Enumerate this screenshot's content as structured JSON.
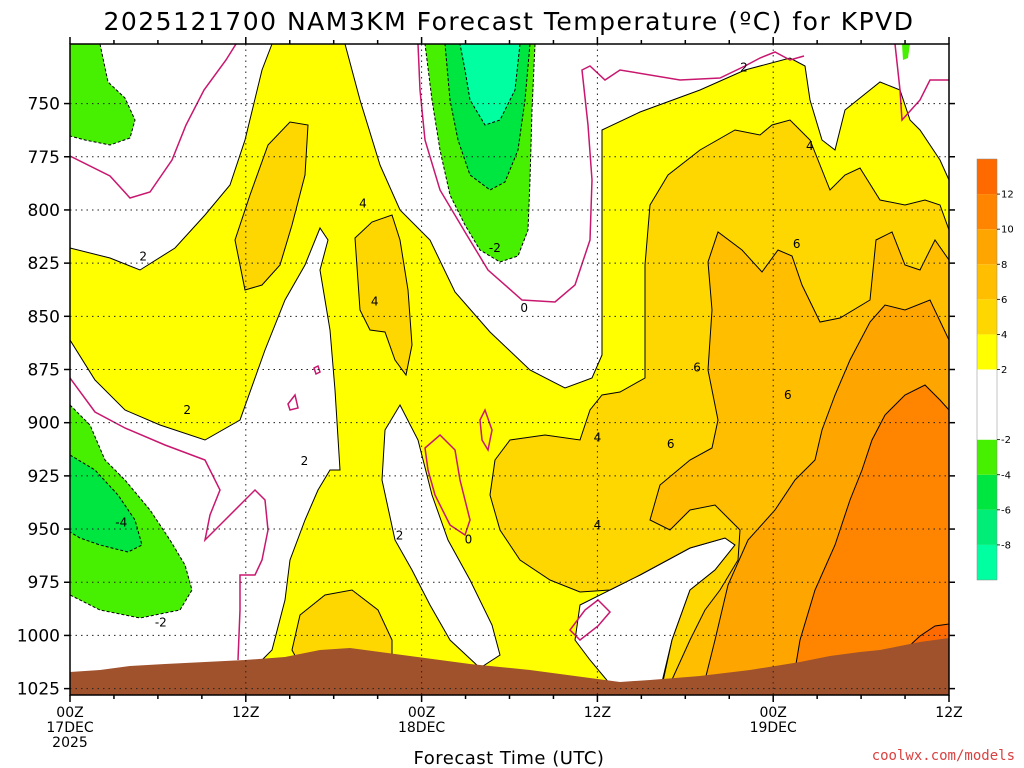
{
  "chart_data": {
    "type": "contour",
    "title": "2025121700 NAM3KM Forecast Temperature (ºC) for KPVD",
    "xlabel": "Forecast Time (UTC)",
    "ylabel": "",
    "x_ticks": [
      {
        "hour": 0,
        "line1": "00Z",
        "line2": "17DEC",
        "line3": "2025"
      },
      {
        "hour": 12,
        "line1": "12Z",
        "line2": "",
        "line3": ""
      },
      {
        "hour": 24,
        "line1": "00Z",
        "line2": "18DEC",
        "line3": ""
      },
      {
        "hour": 36,
        "line1": "12Z",
        "line2": "",
        "line3": ""
      },
      {
        "hour": 48,
        "line1": "00Z",
        "line2": "19DEC",
        "line3": ""
      },
      {
        "hour": 60,
        "line1": "12Z",
        "line2": "",
        "line3": ""
      }
    ],
    "xlim_hours": [
      0,
      60
    ],
    "y_ticks": [
      750,
      775,
      800,
      825,
      850,
      875,
      900,
      925,
      950,
      975,
      1000,
      1025
    ],
    "ylim_hpa": [
      722,
      1028
    ],
    "grid": true,
    "colorbar": {
      "placement": "right",
      "levels": [
        -10,
        -8,
        -6,
        -4,
        -2,
        2,
        4,
        6,
        8,
        10,
        12,
        14
      ],
      "tick_labels": [
        "-8",
        "-6",
        "-4",
        "-2",
        "2",
        "4",
        "6",
        "8",
        "10",
        "12"
      ],
      "bins": [
        {
          "range": [
            -10,
            -8
          ],
          "color": "#00ffa0"
        },
        {
          "range": [
            -8,
            -6
          ],
          "color": "#00ee78"
        },
        {
          "range": [
            -6,
            -4
          ],
          "color": "#00e640"
        },
        {
          "range": [
            -4,
            -2
          ],
          "color": "#46f000"
        },
        {
          "range": [
            -2,
            2
          ],
          "color": "#ffffff"
        },
        {
          "range": [
            2,
            4
          ],
          "color": "#ffff00"
        },
        {
          "range": [
            4,
            6
          ],
          "color": "#ffd700"
        },
        {
          "range": [
            6,
            8
          ],
          "color": "#ffbf00"
        },
        {
          "range": [
            8,
            10
          ],
          "color": "#ffa500"
        },
        {
          "range": [
            10,
            12
          ],
          "color": "#ff8500"
        },
        {
          "range": [
            12,
            14
          ],
          "color": "#ff6a00"
        }
      ]
    },
    "contour_labels": [
      {
        "text": "2",
        "hour": 5.0,
        "hpa": 822
      },
      {
        "text": "2",
        "hour": 8.0,
        "hpa": 894
      },
      {
        "text": "2",
        "hour": 16.0,
        "hpa": 918
      },
      {
        "text": "2",
        "hour": 22.5,
        "hpa": 953
      },
      {
        "text": "4",
        "hour": 20.0,
        "hpa": 797
      },
      {
        "text": "4",
        "hour": 20.8,
        "hpa": 843
      },
      {
        "text": "-2",
        "hour": 29.0,
        "hpa": 818
      },
      {
        "text": "0",
        "hour": 31.0,
        "hpa": 846
      },
      {
        "text": "0",
        "hour": 27.2,
        "hpa": 955
      },
      {
        "text": "4",
        "hour": 36.0,
        "hpa": 907
      },
      {
        "text": "4",
        "hour": 36.0,
        "hpa": 948
      },
      {
        "text": "6",
        "hour": 42.8,
        "hpa": 874
      },
      {
        "text": "6",
        "hour": 41.0,
        "hpa": 910
      },
      {
        "text": "6",
        "hour": 49.0,
        "hpa": 887
      },
      {
        "text": "6",
        "hour": 49.6,
        "hpa": 816
      },
      {
        "text": "4",
        "hour": 50.5,
        "hpa": 770
      },
      {
        "text": "2",
        "hour": 46.0,
        "hpa": 733
      },
      {
        "text": "-4",
        "hour": 3.5,
        "hpa": 947
      },
      {
        "text": "-2",
        "hour": 6.2,
        "hpa": 994
      }
    ],
    "note_surface_fill": "#a0522d"
  },
  "credit": "coolwx.com/models"
}
